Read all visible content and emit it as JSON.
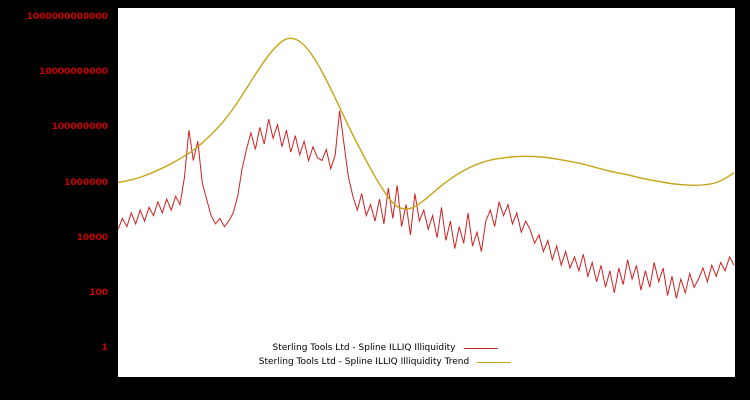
{
  "page": {
    "background_color": "#000000",
    "plot_background_color": "#ffffff"
  },
  "chart_data": {
    "type": "line",
    "title": "",
    "xlabel": "",
    "ylabel": "",
    "grid": false,
    "legend_position": "bottom-center",
    "y_axis": {
      "scale": "log",
      "tick_color": "#cc0000",
      "ticks": [
        {
          "label": "1000000000000",
          "log": 12
        },
        {
          "label": "10000000000",
          "log": 10
        },
        {
          "label": "100000000",
          "log": 8
        },
        {
          "label": "1000000",
          "log": 6
        },
        {
          "label": "10000",
          "log": 4
        },
        {
          "label": "100",
          "log": 2
        },
        {
          "label": "1",
          "log": 0
        }
      ]
    },
    "x_range": [
      0,
      1
    ],
    "series": [
      {
        "name": "Sterling Tools Ltd - Spline ILLIQ Illiquidity",
        "color": "#cc2222",
        "smooth": false,
        "values_log10": [
          4.3,
          4.7,
          4.4,
          4.9,
          4.5,
          5.0,
          4.6,
          5.1,
          4.8,
          5.3,
          4.9,
          5.4,
          5.0,
          5.5,
          5.2,
          6.2,
          7.9,
          6.8,
          7.5,
          6.0,
          5.4,
          4.8,
          4.5,
          4.7,
          4.4,
          4.6,
          4.9,
          5.5,
          6.5,
          7.2,
          7.8,
          7.2,
          8.0,
          7.4,
          8.3,
          7.6,
          8.1,
          7.3,
          7.9,
          7.1,
          7.7,
          7.0,
          7.5,
          6.8,
          7.3,
          6.9,
          6.8,
          7.2,
          6.5,
          7.0,
          8.6,
          7.4,
          6.2,
          5.5,
          5.0,
          5.6,
          4.8,
          5.2,
          4.6,
          5.4,
          4.5,
          5.8,
          4.7,
          5.9,
          4.4,
          5.2,
          4.1,
          5.6,
          4.6,
          5.0,
          4.3,
          4.8,
          4.0,
          5.1,
          3.9,
          4.6,
          3.6,
          4.4,
          3.8,
          4.9,
          3.7,
          4.2,
          3.5,
          4.6,
          5.0,
          4.4,
          5.3,
          4.8,
          5.2,
          4.5,
          4.9,
          4.2,
          4.6,
          4.3,
          3.8,
          4.1,
          3.5,
          3.9,
          3.2,
          3.7,
          3.0,
          3.5,
          2.9,
          3.3,
          2.8,
          3.4,
          2.6,
          3.1,
          2.4,
          3.0,
          2.2,
          2.8,
          2.0,
          2.9,
          2.3,
          3.2,
          2.5,
          3.0,
          2.1,
          2.8,
          2.2,
          3.1,
          2.4,
          2.9,
          1.9,
          2.6,
          1.8,
          2.5,
          2.0,
          2.7,
          2.2,
          2.5,
          2.9,
          2.4,
          3.0,
          2.6,
          3.1,
          2.8,
          3.3,
          3.0
        ]
      },
      {
        "name": "Sterling Tools Ltd - Spline ILLIQ Illiquidity Trend",
        "color": "#c7a417",
        "smooth": true,
        "values_log10": [
          6.0,
          6.1,
          6.3,
          6.55,
          6.85,
          7.2,
          7.7,
          8.3,
          9.1,
          10.0,
          10.8,
          11.3,
          11.1,
          10.3,
          9.2,
          8.0,
          6.9,
          5.9,
          5.1,
          5.0,
          5.4,
          5.9,
          6.3,
          6.6,
          6.8,
          6.9,
          6.95,
          6.95,
          6.9,
          6.8,
          6.7,
          6.55,
          6.4,
          6.3,
          6.15,
          6.05,
          5.95,
          5.9,
          5.9,
          6.0,
          6.35
        ]
      }
    ]
  }
}
